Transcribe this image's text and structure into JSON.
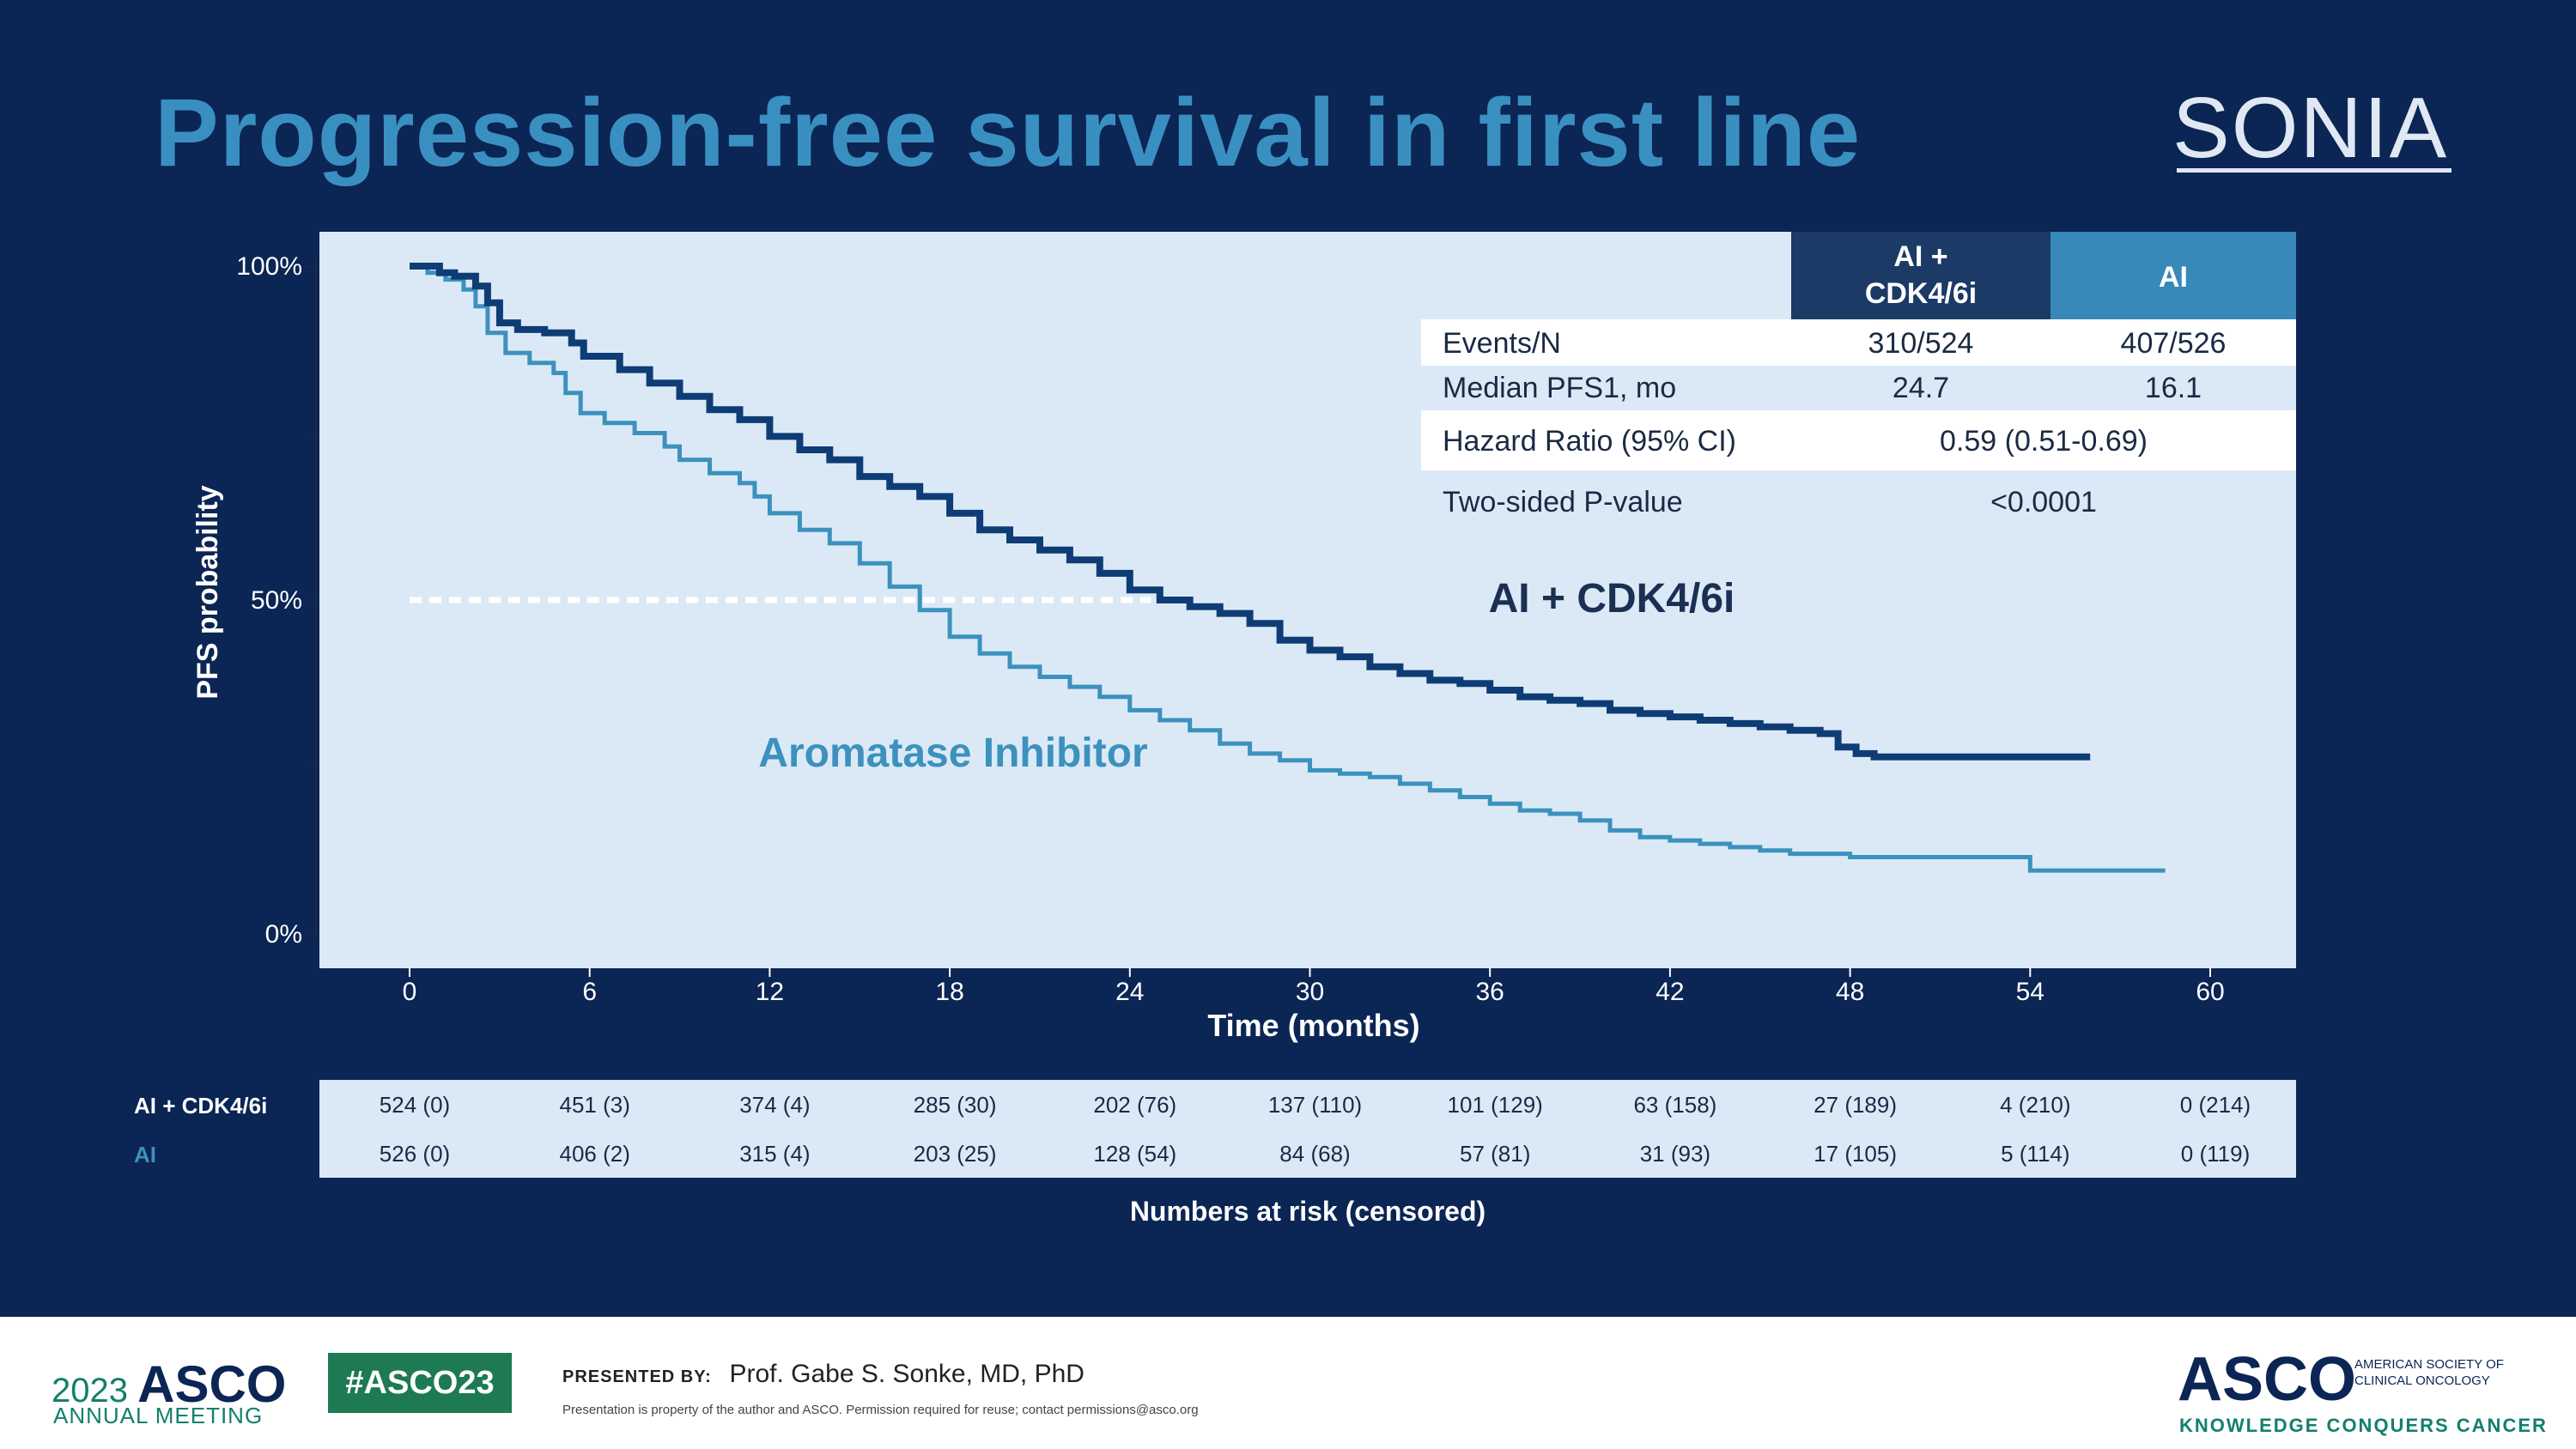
{
  "slide": {
    "title": "Progression-free survival in first line",
    "logo": "SONIA"
  },
  "colors": {
    "background": "#0b2554",
    "panel": "#dbe9f7",
    "title": "#3a8fc1",
    "ai_cdk": "#0e3d75",
    "ai": "#3c91bd",
    "header_dark": "#1b3a66",
    "header_light": "#3889b9"
  },
  "chart_data": {
    "type": "line",
    "subtype": "kaplan-meier",
    "xlabel": "Time (months)",
    "ylabel": "PFS probability",
    "xlim": [
      -5,
      60
    ],
    "ylim": [
      0,
      1
    ],
    "xticks": [
      "0",
      "6",
      "12",
      "18",
      "24",
      "30",
      "36",
      "42",
      "48",
      "54",
      "60"
    ],
    "yticks": [
      "0%",
      "50%",
      "100%"
    ],
    "median_line": {
      "y": 0.5,
      "x_start": 0,
      "x_end": 24.7
    },
    "series": [
      {
        "name": "AI + CDK4/6i",
        "label": "AI + CDK4/6i",
        "color": "#0e3d75",
        "points": [
          [
            0,
            1.0
          ],
          [
            0.6,
            1.0
          ],
          [
            1.0,
            0.99
          ],
          [
            1.5,
            0.985
          ],
          [
            2.2,
            0.97
          ],
          [
            2.6,
            0.945
          ],
          [
            3.0,
            0.915
          ],
          [
            3.6,
            0.905
          ],
          [
            4.5,
            0.9
          ],
          [
            5.4,
            0.885
          ],
          [
            5.8,
            0.865
          ],
          [
            7.0,
            0.845
          ],
          [
            8.0,
            0.825
          ],
          [
            9.0,
            0.805
          ],
          [
            10.0,
            0.785
          ],
          [
            11.0,
            0.77
          ],
          [
            12.0,
            0.745
          ],
          [
            13.0,
            0.725
          ],
          [
            14.0,
            0.71
          ],
          [
            15.0,
            0.685
          ],
          [
            16.0,
            0.67
          ],
          [
            17.0,
            0.655
          ],
          [
            18.0,
            0.63
          ],
          [
            19.0,
            0.605
          ],
          [
            20.0,
            0.59
          ],
          [
            21.0,
            0.575
          ],
          [
            22.0,
            0.56
          ],
          [
            23.0,
            0.54
          ],
          [
            24.0,
            0.515
          ],
          [
            25.0,
            0.5
          ],
          [
            26.0,
            0.49
          ],
          [
            27.0,
            0.48
          ],
          [
            28.0,
            0.465
          ],
          [
            29.0,
            0.44
          ],
          [
            30.0,
            0.425
          ],
          [
            31.0,
            0.415
          ],
          [
            32.0,
            0.4
          ],
          [
            33.0,
            0.39
          ],
          [
            34.0,
            0.38
          ],
          [
            35.0,
            0.375
          ],
          [
            36.0,
            0.365
          ],
          [
            37.0,
            0.355
          ],
          [
            38.0,
            0.35
          ],
          [
            39.0,
            0.345
          ],
          [
            40.0,
            0.335
          ],
          [
            41.0,
            0.33
          ],
          [
            42.0,
            0.325
          ],
          [
            43.0,
            0.32
          ],
          [
            44.0,
            0.315
          ],
          [
            45.0,
            0.31
          ],
          [
            46.0,
            0.305
          ],
          [
            47.0,
            0.3
          ],
          [
            47.6,
            0.28
          ],
          [
            48.2,
            0.27
          ],
          [
            48.8,
            0.265
          ],
          [
            52.0,
            0.265
          ],
          [
            56.0,
            0.265
          ]
        ]
      },
      {
        "name": "AI",
        "label": "Aromatase Inhibitor",
        "color": "#3c91bd",
        "points": [
          [
            0,
            1.0
          ],
          [
            0.6,
            0.99
          ],
          [
            1.2,
            0.98
          ],
          [
            1.8,
            0.965
          ],
          [
            2.2,
            0.94
          ],
          [
            2.6,
            0.9
          ],
          [
            3.2,
            0.87
          ],
          [
            4.0,
            0.855
          ],
          [
            4.8,
            0.84
          ],
          [
            5.2,
            0.81
          ],
          [
            5.7,
            0.78
          ],
          [
            6.5,
            0.765
          ],
          [
            7.5,
            0.75
          ],
          [
            8.5,
            0.73
          ],
          [
            9.0,
            0.71
          ],
          [
            10.0,
            0.69
          ],
          [
            11.0,
            0.675
          ],
          [
            11.5,
            0.655
          ],
          [
            12.0,
            0.63
          ],
          [
            13.0,
            0.605
          ],
          [
            14.0,
            0.585
          ],
          [
            15.0,
            0.555
          ],
          [
            16.0,
            0.52
          ],
          [
            17.0,
            0.485
          ],
          [
            18.0,
            0.445
          ],
          [
            19.0,
            0.42
          ],
          [
            20.0,
            0.4
          ],
          [
            21.0,
            0.385
          ],
          [
            22.0,
            0.37
          ],
          [
            23.0,
            0.355
          ],
          [
            24.0,
            0.335
          ],
          [
            25.0,
            0.32
          ],
          [
            26.0,
            0.305
          ],
          [
            27.0,
            0.285
          ],
          [
            28.0,
            0.27
          ],
          [
            29.0,
            0.26
          ],
          [
            30.0,
            0.245
          ],
          [
            31.0,
            0.24
          ],
          [
            32.0,
            0.235
          ],
          [
            33.0,
            0.225
          ],
          [
            34.0,
            0.215
          ],
          [
            35.0,
            0.205
          ],
          [
            36.0,
            0.195
          ],
          [
            37.0,
            0.185
          ],
          [
            38.0,
            0.18
          ],
          [
            39.0,
            0.17
          ],
          [
            40.0,
            0.155
          ],
          [
            41.0,
            0.145
          ],
          [
            42.0,
            0.14
          ],
          [
            43.0,
            0.135
          ],
          [
            44.0,
            0.13
          ],
          [
            45.0,
            0.125
          ],
          [
            46.0,
            0.12
          ],
          [
            47.0,
            0.12
          ],
          [
            48.0,
            0.115
          ],
          [
            49.0,
            0.115
          ],
          [
            50.0,
            0.115
          ],
          [
            53.5,
            0.115
          ],
          [
            54.0,
            0.095
          ],
          [
            58.5,
            0.095
          ]
        ]
      }
    ],
    "stats_table": {
      "headers": [
        "AI + CDK4/6i",
        "AI"
      ],
      "rows": [
        {
          "label": "Events/N",
          "ai_cdk": "310/524",
          "ai": "407/526"
        },
        {
          "label": "Median PFS1, mo",
          "ai_cdk": "24.7",
          "ai": "16.1"
        }
      ],
      "hazard_ratio_label": "Hazard Ratio (95% CI)",
      "hazard_ratio_value": "0.59 (0.51-0.69)",
      "p_value_label": "Two-sided P-value",
      "p_value": "<0.0001"
    },
    "risk_table": {
      "caption": "Numbers at risk (censored)",
      "arms": [
        {
          "name": "AI + CDK4/6i",
          "values": [
            "524 (0)",
            "451 (3)",
            "374 (4)",
            "285 (30)",
            "202 (76)",
            "137 (110)",
            "101 (129)",
            "63 (158)",
            "27 (189)",
            "4 (210)",
            "0 (214)"
          ]
        },
        {
          "name": "AI",
          "values": [
            "526 (0)",
            "406 (2)",
            "315 (4)",
            "203 (25)",
            "128 (54)",
            "84 (68)",
            "57 (81)",
            "31 (93)",
            "17 (105)",
            "5 (114)",
            "0 (119)"
          ]
        }
      ]
    }
  },
  "footer": {
    "year": "2023",
    "asco": "ASCO",
    "meeting": "ANNUAL MEETING",
    "hashtag": "#ASCO23",
    "presented_label": "PRESENTED BY:",
    "presenter": "Prof. Gabe S. Sonke, MD, PhD",
    "disclaimer": "Presentation is property of the author and ASCO. Permission required for reuse; contact permissions@asco.org",
    "asco_logo": "ASCO",
    "society_line1": "AMERICAN SOCIETY OF",
    "society_line2": "CLINICAL ONCOLOGY",
    "tagline": "KNOWLEDGE CONQUERS CANCER"
  }
}
